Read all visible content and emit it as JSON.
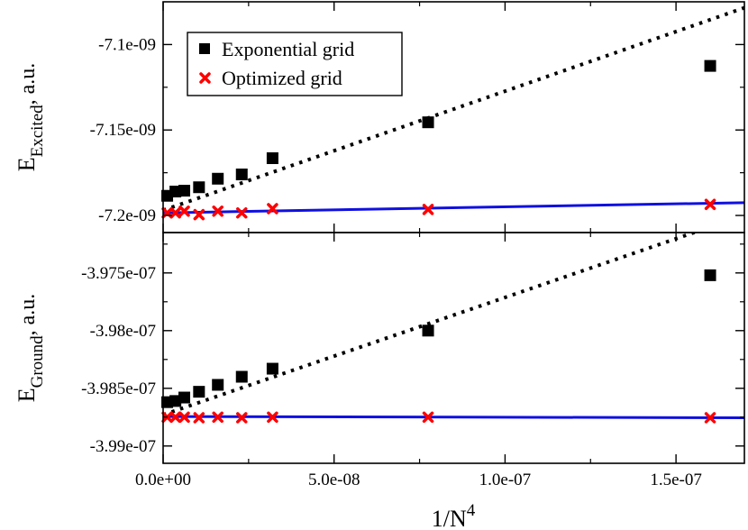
{
  "chart_data": [
    {
      "type": "scatter",
      "panel": "top",
      "ylabel_main": "E",
      "ylabel_sub": "Excited",
      "ylabel_suffix": ",  a.u.",
      "xlim": [
        0,
        1.7e-07
      ],
      "ylim": [
        -7.21e-09,
        -7.075e-09
      ],
      "yticks": [
        -7.2e-09,
        -7.15e-09,
        -7.1e-09
      ],
      "ytick_labels": [
        "-7.2e-09",
        "-7.15e-09",
        "-7.1e-09"
      ],
      "legend_position": "top-left",
      "series": [
        {
          "name": "Exponential grid",
          "marker": "square",
          "color": "#000000",
          "x": [
            1.2e-09,
            3.6e-09,
            6.2e-09,
            1.05e-08,
            1.6e-08,
            2.3e-08,
            3.2e-08,
            7.75e-08,
            1.6e-07
          ],
          "y": [
            -7.1885e-09,
            -7.186e-09,
            -7.1855e-09,
            -7.1835e-09,
            -7.1785e-09,
            -7.176e-09,
            -7.1665e-09,
            -7.1455e-09,
            -7.1125e-09
          ]
        },
        {
          "name": "Optimized grid",
          "marker": "x",
          "color": "#ff0000",
          "x": [
            1.2e-09,
            3.6e-09,
            6.2e-09,
            1.05e-08,
            1.6e-08,
            2.3e-08,
            3.2e-08,
            7.75e-08,
            1.6e-07
          ],
          "y": [
            -7.1985e-09,
            -7.1985e-09,
            -7.1975e-09,
            -7.1995e-09,
            -7.1975e-09,
            -7.1985e-09,
            -7.196e-09,
            -7.1965e-09,
            -7.1935e-09
          ]
        }
      ],
      "fits": [
        {
          "style": "dotted",
          "color": "#000000",
          "x": [
            0,
            1.7e-07
          ],
          "y": [
            -7.197e-09,
            -7.0785e-09
          ]
        },
        {
          "style": "solid",
          "color": "#1010e0",
          "x": [
            0,
            1.7e-07
          ],
          "y": [
            -7.1985e-09,
            -7.1925e-09
          ]
        }
      ]
    },
    {
      "type": "scatter",
      "panel": "bottom",
      "ylabel_main": "E",
      "ylabel_sub": "Ground",
      "ylabel_suffix": ",  a.u.",
      "xlabel": "1/N",
      "xlabel_sup": "4",
      "xlim": [
        0,
        1.7e-07
      ],
      "ylim": [
        -3.9915e-07,
        -3.9715e-07
      ],
      "xticks": [
        0,
        5e-08,
        1e-07,
        1.5e-07
      ],
      "xtick_labels": [
        "0.0e+00",
        "5.0e-08",
        "1.0e-07",
        "1.5e-07"
      ],
      "yticks": [
        -3.99e-07,
        -3.985e-07,
        -3.98e-07,
        -3.975e-07
      ],
      "ytick_labels": [
        "-3.99e-07",
        "-3.985e-07",
        "-3.98e-07",
        "-3.975e-07"
      ],
      "series": [
        {
          "name": "Exponential grid",
          "marker": "square",
          "color": "#000000",
          "x": [
            1.2e-09,
            3.6e-09,
            6.2e-09,
            1.05e-08,
            1.6e-08,
            2.3e-08,
            3.2e-08,
            7.75e-08,
            1.6e-07
          ],
          "y": [
            -3.9862e-07,
            -3.9861e-07,
            -3.9858e-07,
            -3.9853e-07,
            -3.9847e-07,
            -3.984e-07,
            -3.9833e-07,
            -3.98e-07,
            -3.9752e-07
          ]
        },
        {
          "name": "Optimized grid",
          "marker": "x",
          "color": "#ff0000",
          "x": [
            1.2e-09,
            3.6e-09,
            6.2e-09,
            1.05e-08,
            1.6e-08,
            2.3e-08,
            3.2e-08,
            7.75e-08,
            1.6e-07
          ],
          "y": [
            -3.9875e-07,
            -3.9875e-07,
            -3.9875e-07,
            -3.98755e-07,
            -3.9875e-07,
            -3.98755e-07,
            -3.9875e-07,
            -3.9875e-07,
            -3.98755e-07
          ]
        }
      ],
      "fits": [
        {
          "style": "dotted",
          "color": "#000000",
          "x": [
            0,
            1.7e-07
          ],
          "y": [
            -3.9873e-07,
            -3.97e-07
          ]
        },
        {
          "style": "solid",
          "color": "#1010e0",
          "x": [
            0,
            1.7e-07
          ],
          "y": [
            -3.98745e-07,
            -3.98755e-07
          ]
        }
      ]
    }
  ]
}
